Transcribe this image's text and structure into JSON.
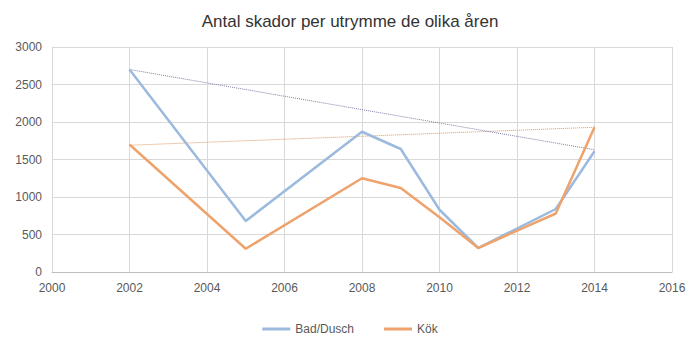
{
  "chart_data": {
    "type": "line",
    "title": "Antal skador per utrymme de olika åren",
    "series": [
      {
        "name": "Bad/Dusch",
        "color": "#9bbadd",
        "line_style": "solid",
        "x": [
          2002,
          2005,
          2008,
          2009,
          2010,
          2011,
          2013,
          2014
        ],
        "values": [
          2700,
          680,
          1870,
          1640,
          830,
          320,
          840,
          1610
        ],
        "trendline": {
          "x": [
            2002,
            2014
          ],
          "values": [
            2700,
            1630
          ],
          "color": "#7f7fa8",
          "line_style": "dotted"
        }
      },
      {
        "name": "Kök",
        "color": "#eea36c",
        "line_style": "solid",
        "x": [
          2002,
          2005,
          2008,
          2009,
          2010,
          2011,
          2013,
          2014
        ],
        "values": [
          1700,
          310,
          1250,
          1120,
          730,
          320,
          780,
          1930
        ],
        "trendline": {
          "x": [
            2002,
            2014
          ],
          "values": [
            1690,
            1930
          ],
          "color": "#e0955f",
          "line_style": "dotted"
        }
      }
    ],
    "xlim": [
      2000,
      2016
    ],
    "xticks": [
      2000,
      2002,
      2004,
      2006,
      2008,
      2010,
      2012,
      2014,
      2016
    ],
    "ylim": [
      0,
      3000
    ],
    "yticks": [
      0,
      500,
      1000,
      1500,
      2000,
      2500,
      3000
    ],
    "grid": true,
    "legend": "bottom"
  }
}
